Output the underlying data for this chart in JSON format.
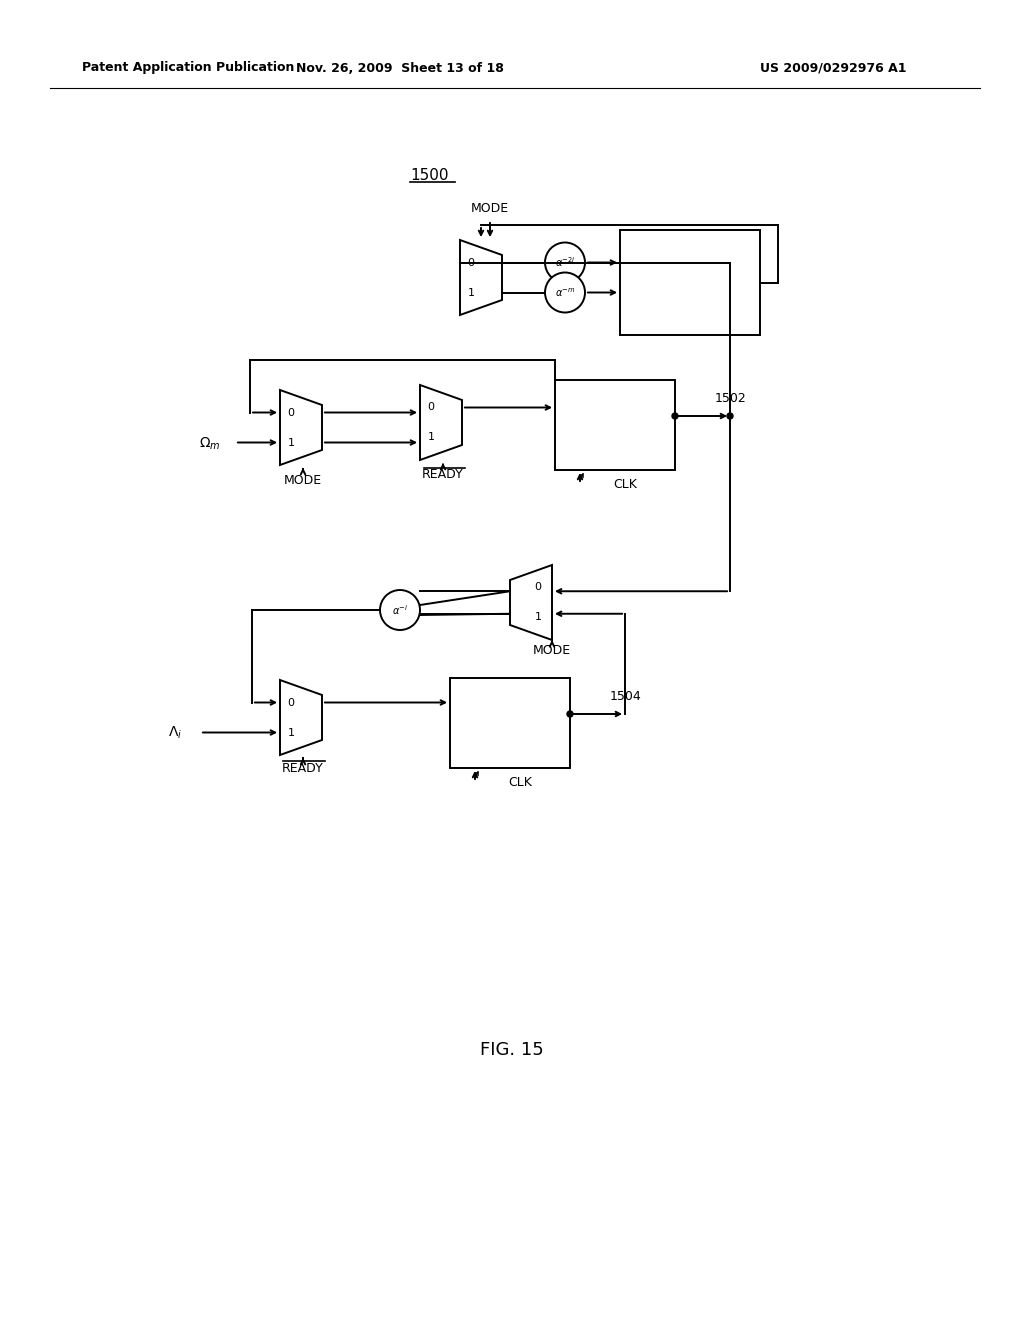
{
  "header_left": "Patent Application Publication",
  "header_mid": "Nov. 26, 2009  Sheet 13 of 18",
  "header_right": "US 2009/0292976 A1",
  "fig_label": "FIG. 15",
  "diagram_label": "1500",
  "label_1502": "1502",
  "label_1504": "1504",
  "bg_color": "#ffffff",
  "lc": "#000000"
}
